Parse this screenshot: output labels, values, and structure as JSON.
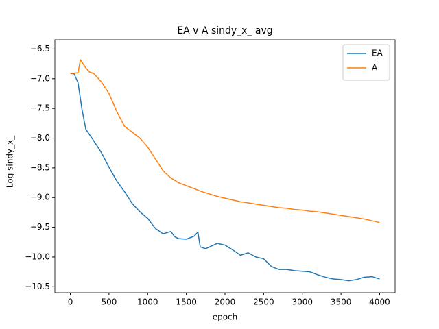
{
  "chart_data": {
    "type": "line",
    "title": "EA v A sindy_x_ avg",
    "x_label": "epoch",
    "y_label": "Log sindy_x_",
    "xlim": [
      -200,
      4200
    ],
    "ylim": [
      -10.6,
      -6.345
    ],
    "xticks": [
      0,
      500,
      1000,
      1500,
      2000,
      2500,
      3000,
      3500,
      4000
    ],
    "yticks": [
      {
        "value": -10.5,
        "label": "−10.5"
      },
      {
        "value": -10.0,
        "label": "−10.0"
      },
      {
        "value": -9.5,
        "label": "−9.5"
      },
      {
        "value": -9.0,
        "label": "−9.0"
      },
      {
        "value": -8.5,
        "label": "−8.5"
      },
      {
        "value": -8.0,
        "label": "−8.0"
      },
      {
        "value": -7.5,
        "label": "−7.5"
      },
      {
        "value": -7.0,
        "label": "−7.0"
      },
      {
        "value": -6.5,
        "label": "−6.5"
      }
    ],
    "legend": "upper right",
    "series": [
      {
        "name": "EA",
        "color": "#1f77b4",
        "x": [
          0,
          50,
          100,
          150,
          200,
          300,
          400,
          500,
          600,
          700,
          800,
          900,
          1000,
          1100,
          1200,
          1300,
          1350,
          1400,
          1500,
          1600,
          1650,
          1680,
          1750,
          1900,
          2000,
          2100,
          2200,
          2300,
          2400,
          2500,
          2600,
          2700,
          2800,
          2900,
          3000,
          3100,
          3200,
          3300,
          3400,
          3500,
          3600,
          3700,
          3800,
          3900,
          4000
        ],
        "values": [
          -6.91,
          -6.92,
          -7.07,
          -7.51,
          -7.85,
          -8.04,
          -8.24,
          -8.49,
          -8.72,
          -8.9,
          -9.1,
          -9.24,
          -9.35,
          -9.52,
          -9.61,
          -9.57,
          -9.66,
          -9.69,
          -9.7,
          -9.65,
          -9.58,
          -9.83,
          -9.86,
          -9.77,
          -9.8,
          -9.88,
          -9.97,
          -9.93,
          -10.0,
          -10.03,
          -10.16,
          -10.21,
          -10.21,
          -10.23,
          -10.24,
          -10.25,
          -10.3,
          -10.34,
          -10.37,
          -10.38,
          -10.4,
          -10.38,
          -10.34,
          -10.33,
          -10.37
        ]
      },
      {
        "name": "A",
        "color": "#ff7f0e",
        "x": [
          0,
          100,
          130,
          200,
          250,
          300,
          400,
          500,
          600,
          700,
          800,
          900,
          1000,
          1100,
          1200,
          1300,
          1400,
          1500,
          1600,
          1700,
          1800,
          1900,
          2000,
          2100,
          2200,
          2300,
          2400,
          2500,
          2600,
          2700,
          2800,
          2900,
          3000,
          3100,
          3200,
          3300,
          3400,
          3500,
          3600,
          3700,
          3800,
          3900,
          4000
        ],
        "values": [
          -6.91,
          -6.9,
          -6.68,
          -6.82,
          -6.89,
          -6.91,
          -7.05,
          -7.25,
          -7.55,
          -7.8,
          -7.9,
          -8.0,
          -8.15,
          -8.35,
          -8.55,
          -8.67,
          -8.75,
          -8.8,
          -8.85,
          -8.9,
          -8.94,
          -8.98,
          -9.01,
          -9.04,
          -9.07,
          -9.09,
          -9.11,
          -9.13,
          -9.15,
          -9.17,
          -9.18,
          -9.2,
          -9.21,
          -9.23,
          -9.24,
          -9.26,
          -9.28,
          -9.3,
          -9.32,
          -9.34,
          -9.36,
          -9.39,
          -9.42
        ]
      }
    ]
  }
}
